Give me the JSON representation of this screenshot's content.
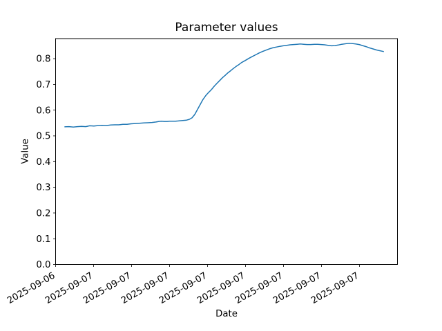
{
  "chart_data": {
    "type": "line",
    "title": "Parameter values",
    "xlabel": "Date",
    "ylabel": "Value",
    "x_tick_labels": [
      "2025-09-06",
      "2025-09-07",
      "2025-09-07",
      "2025-09-07",
      "2025-09-07",
      "2025-09-07",
      "2025-09-07",
      "2025-09-07",
      "2025-09-07"
    ],
    "y_ticks": [
      0.0,
      0.1,
      0.2,
      0.3,
      0.4,
      0.5,
      0.6,
      0.7,
      0.8
    ],
    "ylim": [
      0,
      0.878
    ],
    "grid": false,
    "legend": "none",
    "line_color": "#1f77b4",
    "background": "#ffffff",
    "tick_label_rotation_deg": 30,
    "series": [
      {
        "name": "parameter-value-series",
        "points": [
          [
            0.027,
            0.535
          ],
          [
            0.039,
            0.536
          ],
          [
            0.052,
            0.534
          ],
          [
            0.064,
            0.536
          ],
          [
            0.076,
            0.537
          ],
          [
            0.088,
            0.536
          ],
          [
            0.1,
            0.539
          ],
          [
            0.112,
            0.538
          ],
          [
            0.124,
            0.54
          ],
          [
            0.136,
            0.541
          ],
          [
            0.148,
            0.54
          ],
          [
            0.161,
            0.542
          ],
          [
            0.173,
            0.543
          ],
          [
            0.185,
            0.543
          ],
          [
            0.197,
            0.545
          ],
          [
            0.209,
            0.545
          ],
          [
            0.221,
            0.547
          ],
          [
            0.233,
            0.548
          ],
          [
            0.245,
            0.549
          ],
          [
            0.258,
            0.55
          ],
          [
            0.27,
            0.551
          ],
          [
            0.282,
            0.552
          ],
          [
            0.294,
            0.554
          ],
          [
            0.302,
            0.556
          ],
          [
            0.31,
            0.557
          ],
          [
            0.318,
            0.556
          ],
          [
            0.326,
            0.556
          ],
          [
            0.334,
            0.557
          ],
          [
            0.342,
            0.557
          ],
          [
            0.351,
            0.557
          ],
          [
            0.359,
            0.558
          ],
          [
            0.367,
            0.559
          ],
          [
            0.375,
            0.56
          ],
          [
            0.383,
            0.561
          ],
          [
            0.391,
            0.564
          ],
          [
            0.399,
            0.57
          ],
          [
            0.407,
            0.583
          ],
          [
            0.415,
            0.602
          ],
          [
            0.423,
            0.622
          ],
          [
            0.431,
            0.641
          ],
          [
            0.439,
            0.656
          ],
          [
            0.447,
            0.668
          ],
          [
            0.456,
            0.68
          ],
          [
            0.464,
            0.693
          ],
          [
            0.472,
            0.704
          ],
          [
            0.48,
            0.715
          ],
          [
            0.488,
            0.726
          ],
          [
            0.496,
            0.735
          ],
          [
            0.504,
            0.745
          ],
          [
            0.512,
            0.753
          ],
          [
            0.52,
            0.762
          ],
          [
            0.528,
            0.77
          ],
          [
            0.536,
            0.777
          ],
          [
            0.544,
            0.785
          ],
          [
            0.555,
            0.793
          ],
          [
            0.565,
            0.801
          ],
          [
            0.575,
            0.808
          ],
          [
            0.585,
            0.815
          ],
          [
            0.595,
            0.822
          ],
          [
            0.605,
            0.828
          ],
          [
            0.615,
            0.833
          ],
          [
            0.625,
            0.838
          ],
          [
            0.635,
            0.842
          ],
          [
            0.645,
            0.845
          ],
          [
            0.656,
            0.848
          ],
          [
            0.666,
            0.85
          ],
          [
            0.676,
            0.852
          ],
          [
            0.686,
            0.854
          ],
          [
            0.696,
            0.855
          ],
          [
            0.706,
            0.856
          ],
          [
            0.716,
            0.857
          ],
          [
            0.726,
            0.856
          ],
          [
            0.736,
            0.855
          ],
          [
            0.746,
            0.855
          ],
          [
            0.757,
            0.856
          ],
          [
            0.767,
            0.856
          ],
          [
            0.777,
            0.855
          ],
          [
            0.787,
            0.854
          ],
          [
            0.797,
            0.852
          ],
          [
            0.807,
            0.85
          ],
          [
            0.817,
            0.851
          ],
          [
            0.827,
            0.853
          ],
          [
            0.837,
            0.856
          ],
          [
            0.847,
            0.858
          ],
          [
            0.858,
            0.86
          ],
          [
            0.868,
            0.859
          ],
          [
            0.878,
            0.857
          ],
          [
            0.888,
            0.855
          ],
          [
            0.898,
            0.851
          ],
          [
            0.908,
            0.847
          ],
          [
            0.918,
            0.842
          ],
          [
            0.928,
            0.838
          ],
          [
            0.938,
            0.834
          ],
          [
            0.948,
            0.831
          ],
          [
            0.959,
            0.828
          ]
        ]
      }
    ]
  }
}
